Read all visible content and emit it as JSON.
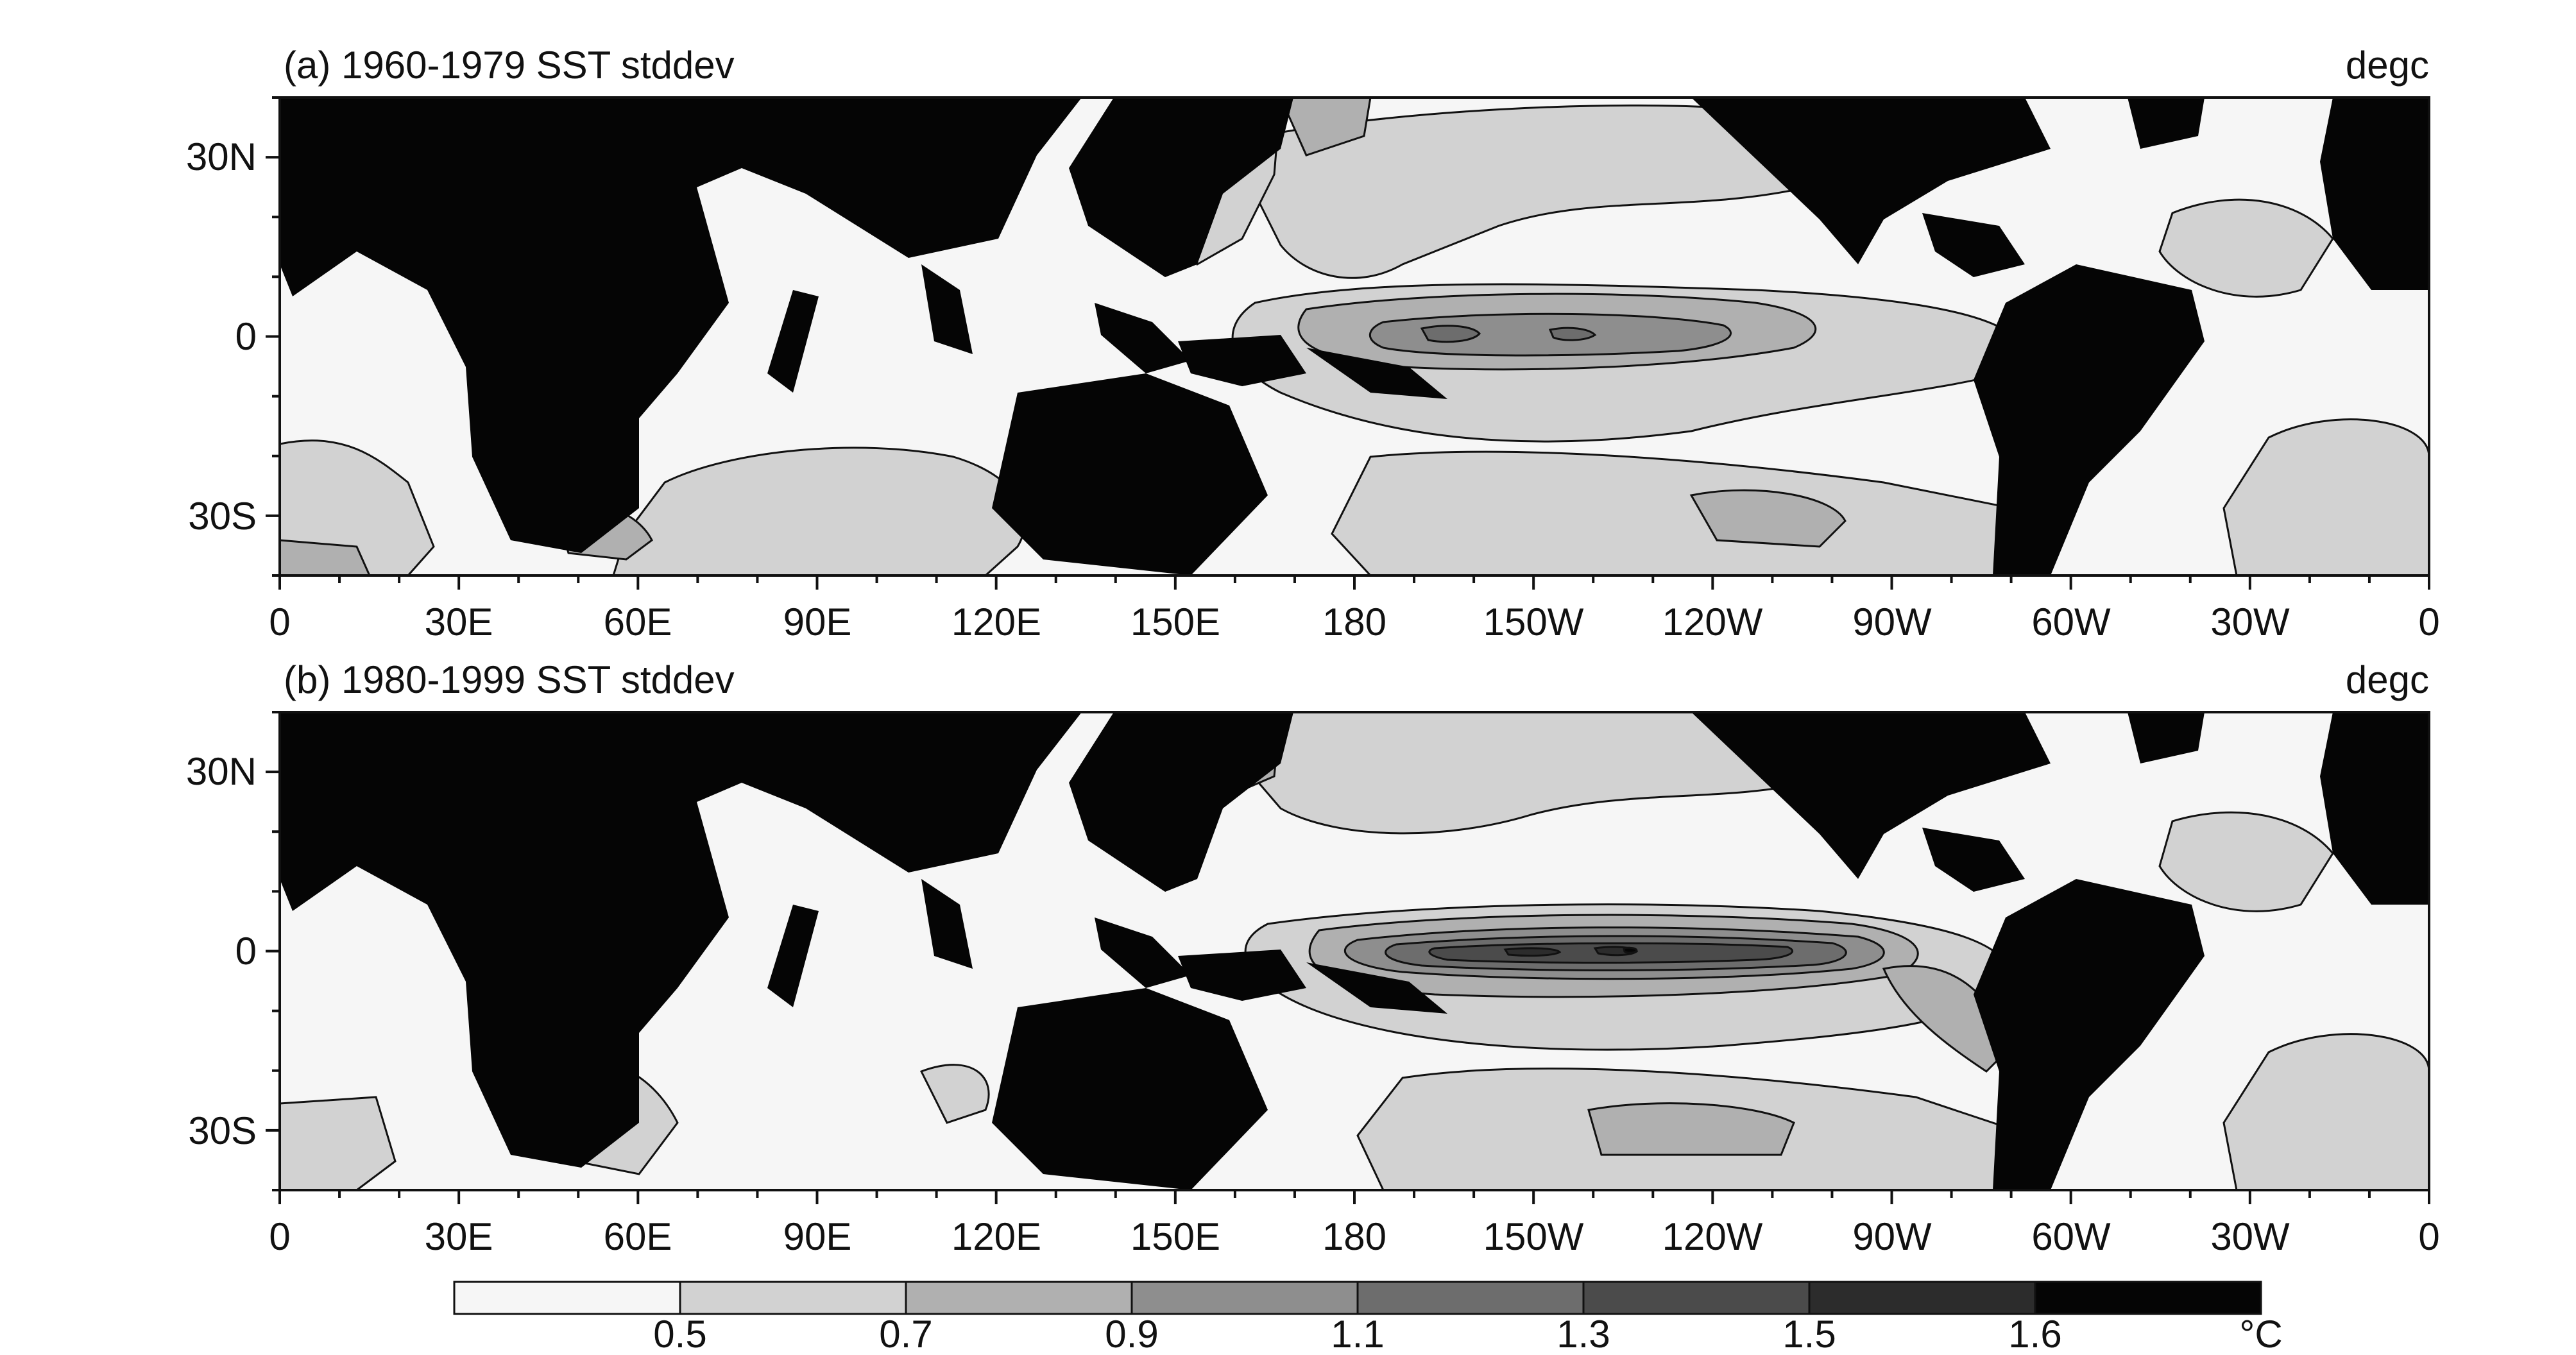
{
  "panels": [
    {
      "id": "a",
      "title": "(a)  1960-1979 SST stddev",
      "units": "degc",
      "lat_ticks": [
        "30N",
        "0",
        "30S"
      ],
      "lon_ticks": [
        "0",
        "30E",
        "60E",
        "90E",
        "120E",
        "150E",
        "180",
        "150W",
        "120W",
        "90W",
        "60W",
        "30W",
        "0"
      ]
    },
    {
      "id": "b",
      "title": "(b)  1980-1999 SST stddev",
      "units": "degc",
      "lat_ticks": [
        "30N",
        "0",
        "30S"
      ],
      "lon_ticks": [
        "0",
        "30E",
        "60E",
        "90E",
        "120E",
        "150E",
        "180",
        "150W",
        "120W",
        "90W",
        "60W",
        "30W",
        "0"
      ]
    }
  ],
  "colorbar": {
    "labels": [
      "0.5",
      "0.7",
      "0.9",
      "1.1",
      "1.3",
      "1.5",
      "1.6"
    ],
    "unit": "°C",
    "colors": [
      "#f6f6f6",
      "#d2d2d2",
      "#b0b0b0",
      "#8e8e8e",
      "#6d6d6d",
      "#4b4b4b",
      "#2c2c2c",
      "#050505"
    ]
  },
  "colors": {
    "land": "#050505",
    "ocean": "#f6f6f6"
  }
}
